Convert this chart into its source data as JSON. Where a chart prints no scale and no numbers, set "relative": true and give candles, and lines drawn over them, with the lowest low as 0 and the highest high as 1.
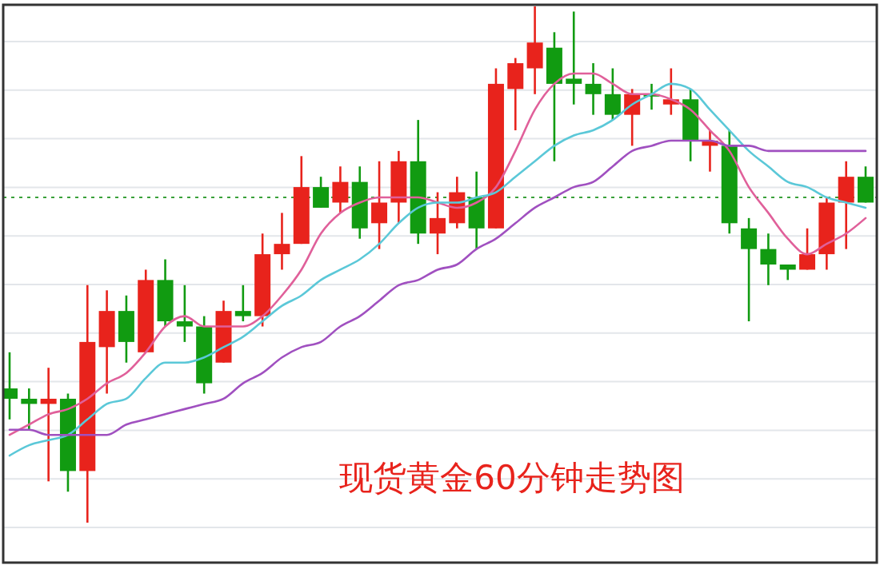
{
  "chart_data": {
    "type": "candlestick",
    "title": "现货黄金60分钟走势图",
    "relative": true,
    "grid": "y",
    "categories": [
      null,
      null,
      null,
      null,
      null,
      null,
      null,
      null,
      null,
      null,
      null,
      null,
      null,
      null,
      null,
      null,
      null,
      null,
      null,
      null,
      null,
      null,
      null,
      null,
      null,
      null,
      null,
      null,
      null,
      null,
      null,
      null,
      null,
      null,
      null,
      null,
      null,
      null,
      null,
      null,
      null,
      null,
      null,
      null,
      null
    ],
    "ohlc": [
      [
        0.26,
        0.33,
        0.2,
        0.24
      ],
      [
        0.24,
        0.26,
        0.18,
        0.23
      ],
      [
        0.23,
        0.3,
        0.08,
        0.24
      ],
      [
        0.24,
        0.25,
        0.06,
        0.1
      ],
      [
        0.1,
        0.46,
        0,
        0.35
      ],
      [
        0.34,
        0.45,
        0.25,
        0.41
      ],
      [
        0.41,
        0.44,
        0.31,
        0.35
      ],
      [
        0.33,
        0.49,
        0.33,
        0.47
      ],
      [
        0.47,
        0.51,
        0.38,
        0.39
      ],
      [
        0.39,
        0.46,
        0.35,
        0.38
      ],
      [
        0.38,
        0.4,
        0.25,
        0.27
      ],
      [
        0.31,
        0.43,
        0.31,
        0.41
      ],
      [
        0.41,
        0.46,
        0.39,
        0.4
      ],
      [
        0.4,
        0.56,
        0.38,
        0.52
      ],
      [
        0.52,
        0.6,
        0.49,
        0.54
      ],
      [
        0.54,
        0.71,
        0.54,
        0.65
      ],
      [
        0.65,
        0.67,
        0.61,
        0.61
      ],
      [
        0.62,
        0.69,
        0.6,
        0.66
      ],
      [
        0.66,
        0.69,
        0.55,
        0.57
      ],
      [
        0.58,
        0.7,
        0.53,
        0.62
      ],
      [
        0.62,
        0.72,
        0.58,
        0.7
      ],
      [
        0.7,
        0.78,
        0.54,
        0.56
      ],
      [
        0.56,
        0.64,
        0.52,
        0.59
      ],
      [
        0.58,
        0.67,
        0.57,
        0.64
      ],
      [
        0.63,
        0.68,
        0.53,
        0.57
      ],
      [
        0.57,
        0.88,
        0.57,
        0.85
      ],
      [
        0.84,
        0.9,
        0.76,
        0.89
      ],
      [
        0.88,
        1,
        0.83,
        0.93
      ],
      [
        0.92,
        0.95,
        0.7,
        0.85
      ],
      [
        0.86,
        0.99,
        0.81,
        0.85
      ],
      [
        0.85,
        0.89,
        0.79,
        0.83
      ],
      [
        0.83,
        0.88,
        0.78,
        0.79
      ],
      [
        0.79,
        0.84,
        0.73,
        0.83
      ],
      [
        0.83,
        0.85,
        0.8,
        0.83
      ],
      [
        0.81,
        0.88,
        0.79,
        0.82
      ],
      [
        0.82,
        0.84,
        0.7,
        0.74
      ],
      [
        0.73,
        0.76,
        0.68,
        0.74
      ],
      [
        0.73,
        0.76,
        0.56,
        0.58
      ],
      [
        0.57,
        0.59,
        0.39,
        0.53
      ],
      [
        0.53,
        0.56,
        0.46,
        0.5
      ],
      [
        0.5,
        0.5,
        0.47,
        0.49
      ],
      [
        0.49,
        0.57,
        0.49,
        0.52
      ],
      [
        0.52,
        0.63,
        0.49,
        0.62
      ],
      [
        0.62,
        0.7,
        0.53,
        0.67
      ],
      [
        0.67,
        0.69,
        0.62,
        0.62
      ]
    ],
    "colors": [
      "#119b11",
      "#119b11",
      "#e8231c",
      "#119b11",
      "#e8231c",
      "#e8231c",
      "#119b11",
      "#e8231c",
      "#119b11",
      "#119b11",
      "#119b11",
      "#e8231c",
      "#119b11",
      "#e8231c",
      "#e8231c",
      "#e8231c",
      "#119b11",
      "#e8231c",
      "#119b11",
      "#e8231c",
      "#e8231c",
      "#119b11",
      "#e8231c",
      "#e8231c",
      "#119b11",
      "#e8231c",
      "#e8231c",
      "#e8231c",
      "#119b11",
      "#119b11",
      "#119b11",
      "#119b11",
      "#e8231c",
      "#119b11",
      "#e8231c",
      "#119b11",
      "#e8231c",
      "#119b11",
      "#119b11",
      "#119b11",
      "#119b11",
      "#e8231c",
      "#e8231c",
      "#e8231c",
      "#119b11"
    ],
    "series": [
      {
        "type": "line",
        "color": "#e0609a",
        "values": [
          0.17,
          0.19,
          0.21,
          0.22,
          0.24,
          0.27,
          0.29,
          0.33,
          0.38,
          0.4,
          0.38,
          0.38,
          0.38,
          0.4,
          0.44,
          0.49,
          0.56,
          0.6,
          0.62,
          0.63,
          0.63,
          0.63,
          0.62,
          0.61,
          0.62,
          0.65,
          0.72,
          0.8,
          0.85,
          0.87,
          0.87,
          0.85,
          0.83,
          0.83,
          0.82,
          0.8,
          0.76,
          0.72,
          0.65,
          0.6,
          0.55,
          0.52,
          0.54,
          0.56,
          0.59
        ]
      },
      {
        "type": "line",
        "color": "#5bc8d8",
        "values": [
          0.13,
          0.15,
          0.16,
          0.17,
          0.2,
          0.23,
          0.24,
          0.28,
          0.31,
          0.31,
          0.32,
          0.34,
          0.36,
          0.39,
          0.42,
          0.44,
          0.47,
          0.49,
          0.51,
          0.54,
          0.58,
          0.61,
          0.62,
          0.62,
          0.63,
          0.64,
          0.67,
          0.7,
          0.73,
          0.75,
          0.76,
          0.78,
          0.81,
          0.83,
          0.85,
          0.84,
          0.8,
          0.76,
          0.72,
          0.69,
          0.66,
          0.65,
          0.63,
          0.62,
          0.61
        ]
      },
      {
        "type": "line",
        "color": "#a050c0",
        "values": [
          0.18,
          0.18,
          0.17,
          0.17,
          0.17,
          0.17,
          0.19,
          0.2,
          0.21,
          0.22,
          0.23,
          0.24,
          0.27,
          0.29,
          0.32,
          0.34,
          0.35,
          0.38,
          0.4,
          0.43,
          0.46,
          0.47,
          0.49,
          0.5,
          0.53,
          0.55,
          0.58,
          0.61,
          0.63,
          0.65,
          0.66,
          0.69,
          0.72,
          0.73,
          0.74,
          0.74,
          0.74,
          0.73,
          0.73,
          0.72,
          0.72,
          0.72,
          0.72,
          0.72,
          0.72
        ]
      }
    ],
    "ref_lines": [
      {
        "axis": "y",
        "value": 0.63,
        "color": "#3aa13a",
        "line_style": "dotted"
      }
    ]
  }
}
